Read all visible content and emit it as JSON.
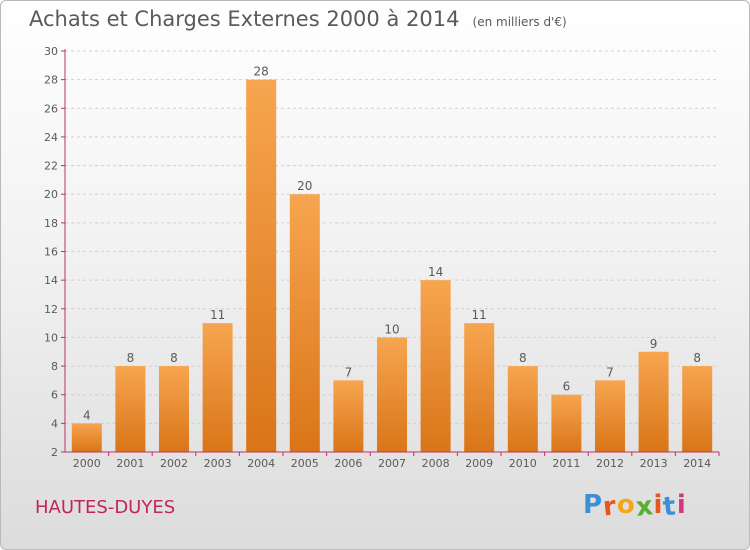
{
  "title": "Achats et Charges Externes 2000 à 2014",
  "subtitle": "(en milliers d'€)",
  "commune": "HAUTES-DUYES",
  "brand": "Proxiti",
  "colors": {
    "bar_top": "#f7a550",
    "bar_bottom": "#d97518",
    "axis": "#c0305e",
    "grid": "#d0d0d0",
    "text": "#5a5a5a",
    "commune": "#c3245c"
  },
  "chart_data": {
    "type": "bar",
    "title": "Achats et Charges Externes 2000 à 2014",
    "subtitle": "(en milliers d'€)",
    "categories": [
      "2000",
      "2001",
      "2002",
      "2003",
      "2004",
      "2005",
      "2006",
      "2007",
      "2008",
      "2009",
      "2010",
      "2011",
      "2012",
      "2013",
      "2014"
    ],
    "values": [
      4,
      8,
      8,
      11,
      28,
      20,
      7,
      10,
      14,
      11,
      8,
      6,
      7,
      9,
      8
    ],
    "ylim": [
      2,
      30
    ],
    "yticks": [
      2,
      4,
      6,
      8,
      10,
      12,
      14,
      16,
      18,
      20,
      22,
      24,
      26,
      28,
      30
    ],
    "grid": true,
    "data_labels": true,
    "legend": "none"
  }
}
